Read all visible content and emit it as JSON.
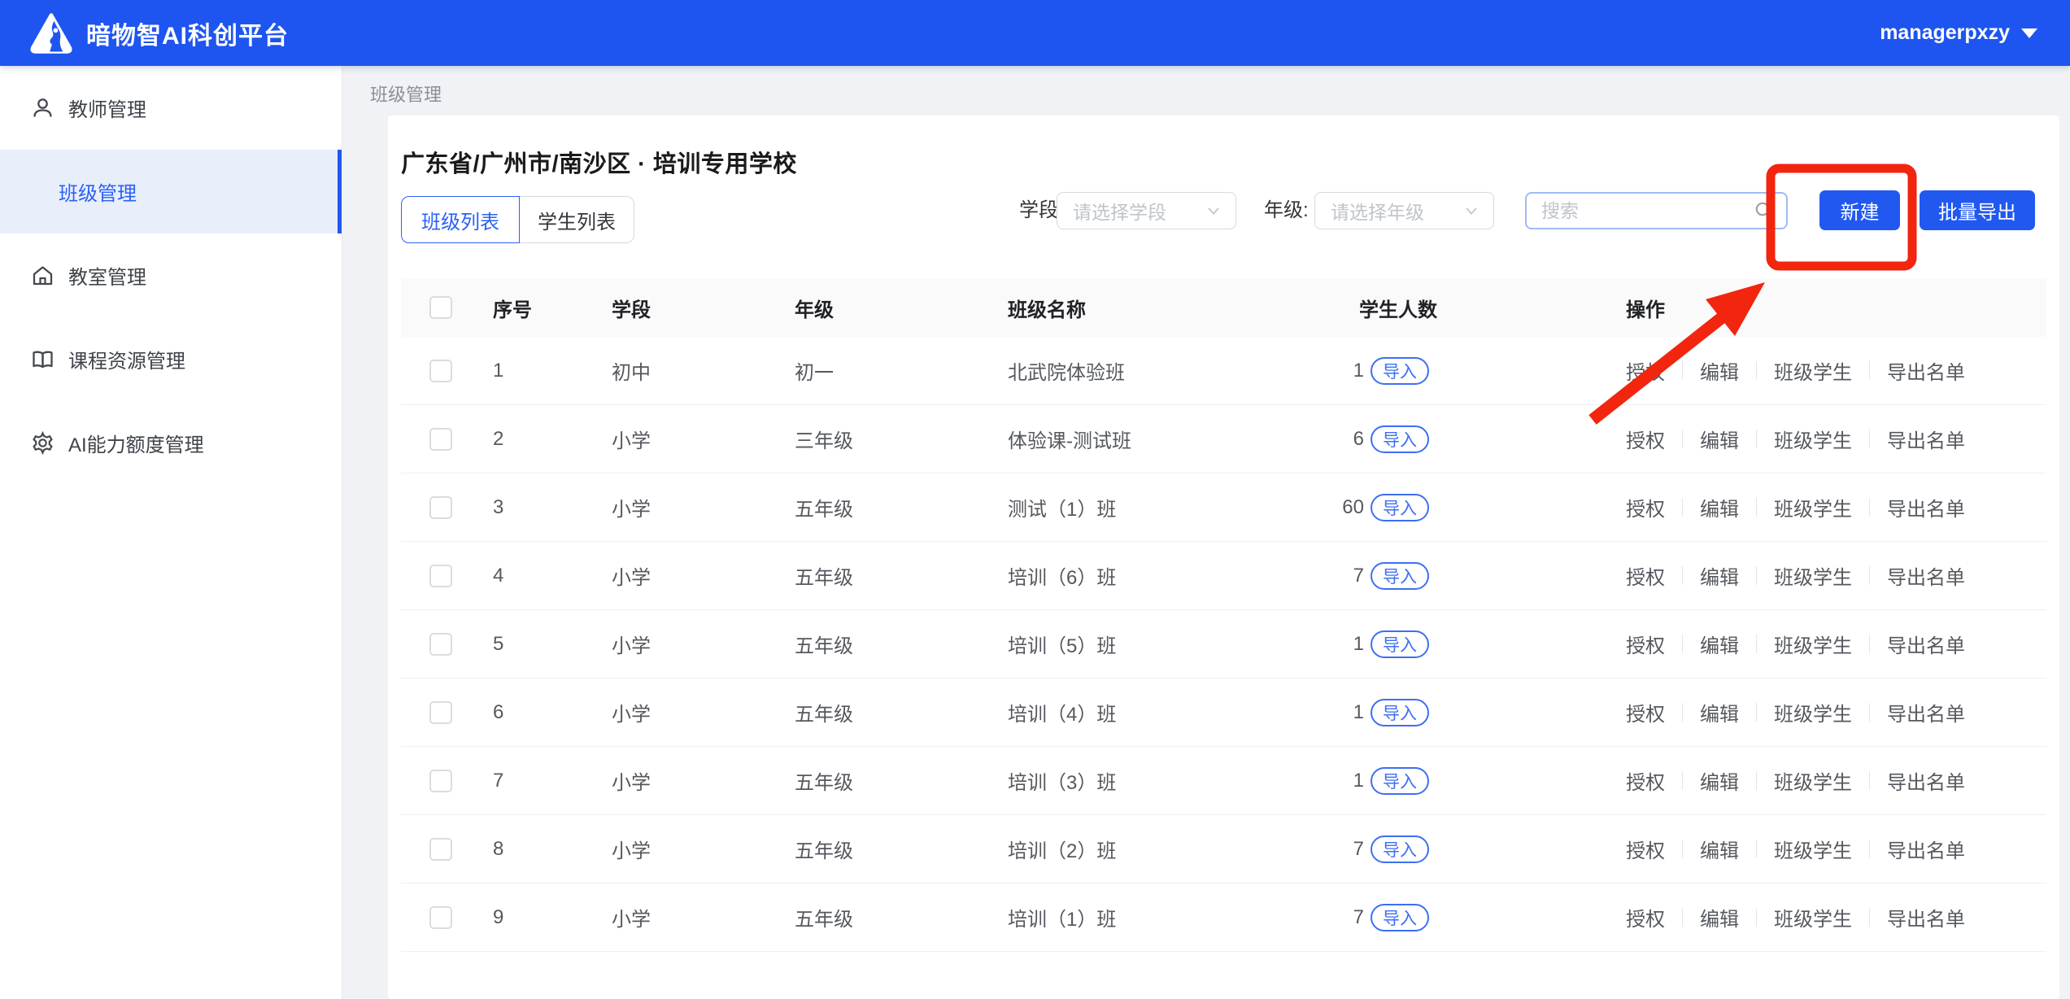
{
  "header": {
    "app_title": "暗物智AI科创平台",
    "user_name": "managerpxzy"
  },
  "sidebar": {
    "items": [
      {
        "label": "教师管理",
        "icon": "user-icon",
        "active": false
      },
      {
        "label": "班级管理",
        "icon": "",
        "active": true
      },
      {
        "label": "教室管理",
        "icon": "home-icon",
        "active": false
      },
      {
        "label": "课程资源管理",
        "icon": "book-icon",
        "active": false
      },
      {
        "label": "AI能力额度管理",
        "icon": "gear-icon",
        "active": false
      }
    ]
  },
  "breadcrumb": {
    "current": "班级管理"
  },
  "content": {
    "school_title": "广东省/广州市/南沙区 · 培训专用学校"
  },
  "tabs": [
    {
      "label": "班级列表",
      "active": true
    },
    {
      "label": "学生列表",
      "active": false
    }
  ],
  "filters": {
    "stage": {
      "label": "学段:",
      "placeholder": "请选择学段"
    },
    "grade": {
      "label": "年级:",
      "placeholder": "请选择年级"
    },
    "search": {
      "placeholder": "搜索"
    }
  },
  "toolbar": {
    "create_label": "新建",
    "batch_export_label": "批量导出"
  },
  "table": {
    "headers": [
      "序号",
      "学段",
      "年级",
      "班级名称",
      "学生人数",
      "操作"
    ],
    "import_label": "导入",
    "row_actions": [
      "授权",
      "编辑",
      "班级学生",
      "导出名单"
    ],
    "rows": [
      {
        "no": "1",
        "stage": "初中",
        "grade": "初一",
        "name": "北武院体验班",
        "count": "1"
      },
      {
        "no": "2",
        "stage": "小学",
        "grade": "三年级",
        "name": "体验课-测试班",
        "count": "6"
      },
      {
        "no": "3",
        "stage": "小学",
        "grade": "五年级",
        "name": "测试（1）班",
        "count": "60"
      },
      {
        "no": "4",
        "stage": "小学",
        "grade": "五年级",
        "name": "培训（6）班",
        "count": "7"
      },
      {
        "no": "5",
        "stage": "小学",
        "grade": "五年级",
        "name": "培训（5）班",
        "count": "1"
      },
      {
        "no": "6",
        "stage": "小学",
        "grade": "五年级",
        "name": "培训（4）班",
        "count": "1"
      },
      {
        "no": "7",
        "stage": "小学",
        "grade": "五年级",
        "name": "培训（3）班",
        "count": "1"
      },
      {
        "no": "8",
        "stage": "小学",
        "grade": "五年级",
        "name": "培训（2）班",
        "count": "7"
      },
      {
        "no": "9",
        "stage": "小学",
        "grade": "五年级",
        "name": "培训（1）班",
        "count": "7"
      }
    ]
  },
  "annotation": {
    "shape": "red-box-with-arrow",
    "highlighted_button": "新建"
  },
  "colors": {
    "accent_blue": "#2158F0",
    "annotation_red": "#F2250F",
    "active_item_bg": "#E9EEFB"
  }
}
